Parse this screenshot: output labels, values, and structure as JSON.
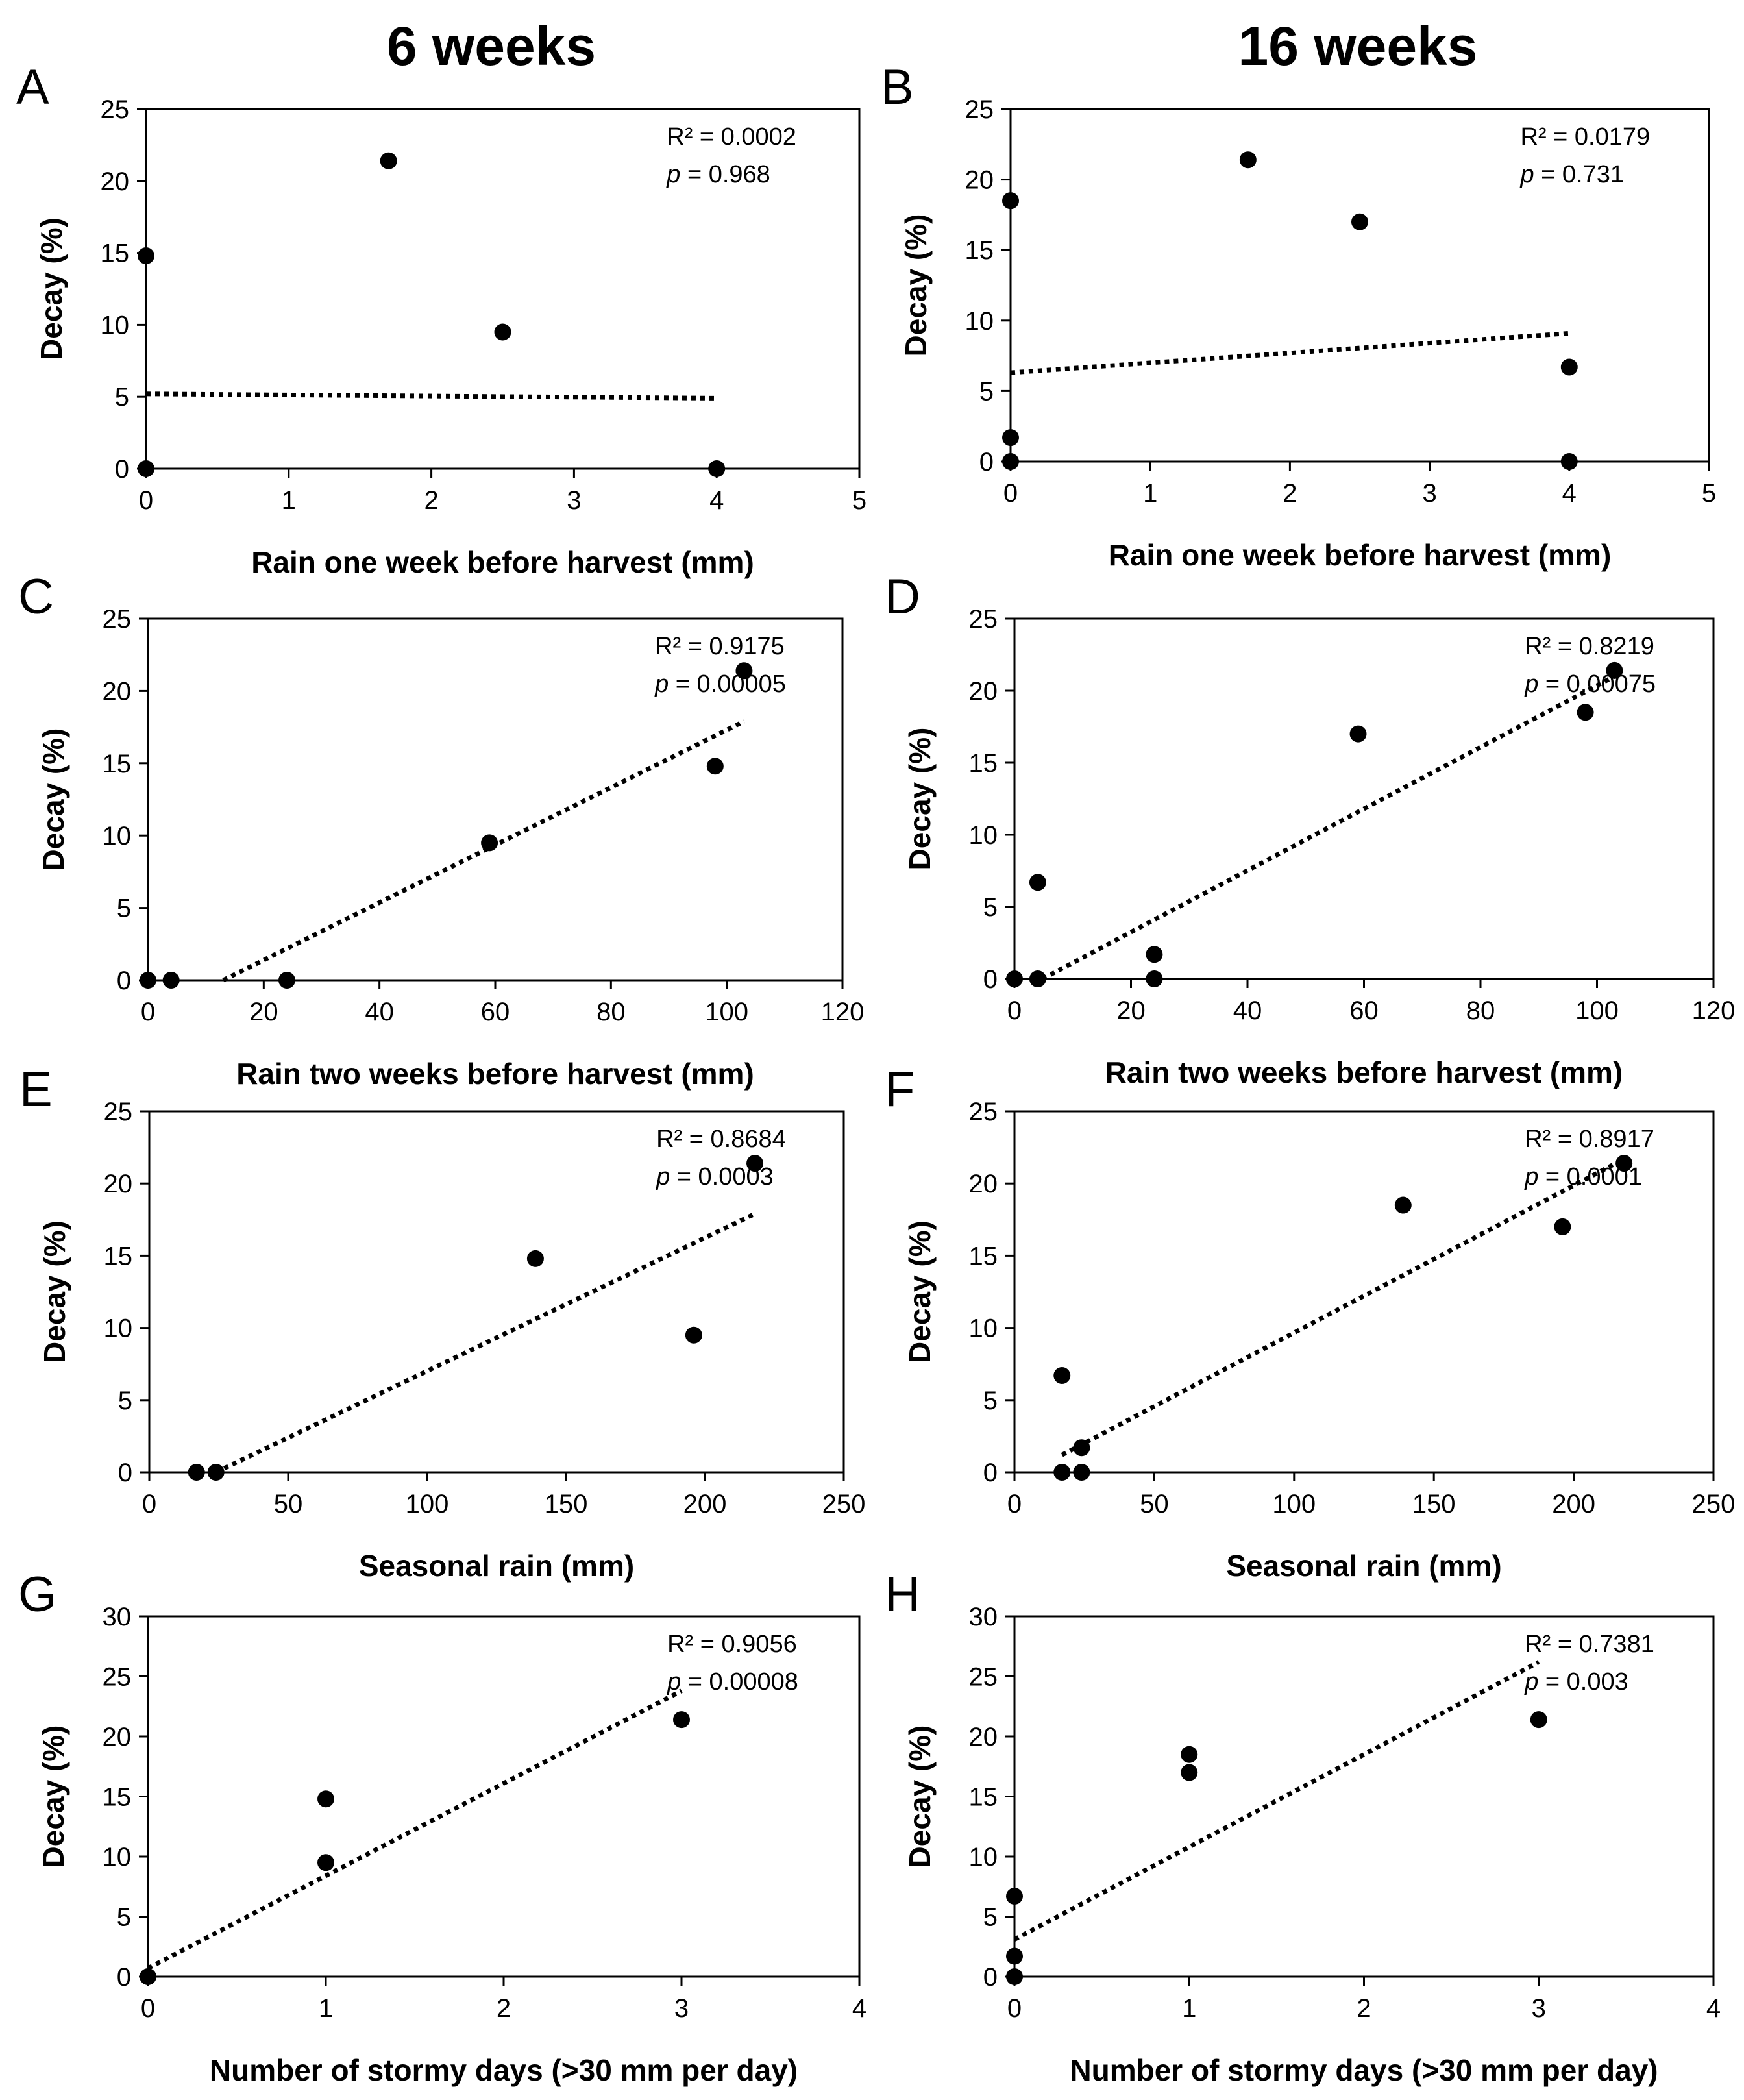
{
  "column_titles": [
    "6 weeks",
    "16 weeks"
  ],
  "chart_data": [
    {
      "type": "scatter",
      "panel": "A",
      "title": "",
      "xlabel": "Rain one week before harvest (mm)",
      "ylabel": "Decay (%)",
      "xlim": [
        0,
        5
      ],
      "ylim": [
        0,
        25
      ],
      "xticks": [
        0,
        1,
        2,
        3,
        4,
        5
      ],
      "yticks": [
        0,
        5,
        10,
        15,
        20,
        25
      ],
      "points": [
        [
          0,
          14.8
        ],
        [
          0,
          0
        ],
        [
          1.7,
          21.4
        ],
        [
          2.5,
          9.5
        ],
        [
          4,
          0
        ]
      ],
      "trendline": {
        "x1": 0,
        "y1": 5.2,
        "x2": 4,
        "y2": 4.9
      },
      "r2": "R² = 0.0002",
      "p_label": "p",
      "p_value": " =  0.968"
    },
    {
      "type": "scatter",
      "panel": "B",
      "title": "",
      "xlabel": "Rain one week before harvest (mm)",
      "ylabel": "Decay (%)",
      "xlim": [
        0,
        5
      ],
      "ylim": [
        0,
        25
      ],
      "xticks": [
        0,
        1,
        2,
        3,
        4,
        5
      ],
      "yticks": [
        0,
        5,
        10,
        15,
        20,
        25
      ],
      "points": [
        [
          0,
          18.5
        ],
        [
          0,
          1.7
        ],
        [
          0,
          0
        ],
        [
          1.7,
          21.4
        ],
        [
          2.5,
          17.0
        ],
        [
          4,
          6.7
        ],
        [
          4,
          0
        ]
      ],
      "trendline": {
        "x1": 0,
        "y1": 6.3,
        "x2": 4,
        "y2": 9.1
      },
      "r2": "R² = 0.0179",
      "p_label": "p",
      "p_value": " = 0.731"
    },
    {
      "type": "scatter",
      "panel": "C",
      "title": "",
      "xlabel": "Rain two weeks before harvest (mm)",
      "ylabel": "Decay (%)",
      "xlim": [
        0,
        120
      ],
      "ylim": [
        0,
        25
      ],
      "xticks": [
        0,
        20,
        40,
        60,
        80,
        100,
        120
      ],
      "yticks": [
        0,
        5,
        10,
        15,
        20,
        25
      ],
      "points": [
        [
          0,
          0
        ],
        [
          4,
          0
        ],
        [
          24,
          0
        ],
        [
          59,
          9.5
        ],
        [
          98,
          14.8
        ],
        [
          103,
          21.4
        ]
      ],
      "trendline": {
        "x1": 13,
        "y1": 0,
        "x2": 103,
        "y2": 17.9
      },
      "r2": "R² = 0.9175",
      "p_label": "p",
      "p_value": " =  0.00005"
    },
    {
      "type": "scatter",
      "panel": "D",
      "title": "",
      "xlabel": "Rain two weeks before harvest (mm)",
      "ylabel": "Decay (%)",
      "xlim": [
        0,
        120
      ],
      "ylim": [
        0,
        25
      ],
      "xticks": [
        0,
        20,
        40,
        60,
        80,
        100,
        120
      ],
      "yticks": [
        0,
        5,
        10,
        15,
        20,
        25
      ],
      "points": [
        [
          0,
          0
        ],
        [
          4,
          6.7
        ],
        [
          4,
          0
        ],
        [
          24,
          1.7
        ],
        [
          24,
          0
        ],
        [
          59,
          17.0
        ],
        [
          98,
          18.5
        ],
        [
          103,
          21.4
        ]
      ],
      "trendline": {
        "x1": 2,
        "y1": -0.6,
        "x2": 103,
        "y2": 21.0
      },
      "r2": "R² = 0.8219",
      "p_label": "p",
      "p_value": " = 0.00075"
    },
    {
      "type": "scatter",
      "panel": "E",
      "title": "",
      "xlabel": "Seasonal rain (mm)",
      "ylabel": "Decay (%)",
      "xlim": [
        0,
        250
      ],
      "ylim": [
        0,
        25
      ],
      "xticks": [
        0,
        50,
        100,
        150,
        200,
        250
      ],
      "yticks": [
        0,
        5,
        10,
        15,
        20,
        25
      ],
      "points": [
        [
          17,
          0
        ],
        [
          24,
          0
        ],
        [
          139,
          14.8
        ],
        [
          196,
          9.5
        ],
        [
          218,
          21.4
        ]
      ],
      "trendline": {
        "x1": 24,
        "y1": 0,
        "x2": 218,
        "y2": 17.9
      },
      "r2": "R² = 0.8684",
      "p_label": "p",
      "p_value": " = 0.0003"
    },
    {
      "type": "scatter",
      "panel": "F",
      "title": "",
      "xlabel": "Seasonal rain (mm)",
      "ylabel": "Decay (%)",
      "xlim": [
        0,
        250
      ],
      "ylim": [
        0,
        25
      ],
      "xticks": [
        0,
        50,
        100,
        150,
        200,
        250
      ],
      "yticks": [
        0,
        5,
        10,
        15,
        20,
        25
      ],
      "points": [
        [
          17,
          6.7
        ],
        [
          17,
          0
        ],
        [
          24,
          1.7
        ],
        [
          24,
          0
        ],
        [
          139,
          18.5
        ],
        [
          196,
          17.0
        ],
        [
          218,
          21.4
        ]
      ],
      "trendline": {
        "x1": 17,
        "y1": 1.2,
        "x2": 218,
        "y2": 21.7
      },
      "r2": "R² = 0.8917",
      "p_label": "p",
      "p_value": " = 0.0001"
    },
    {
      "type": "scatter",
      "panel": "G",
      "title": "",
      "xlabel": "Number of stormy days (>30 mm per day)",
      "ylabel": "Decay (%)",
      "xlim": [
        0,
        4
      ],
      "ylim": [
        0,
        30
      ],
      "xticks": [
        0,
        1,
        2,
        3,
        4
      ],
      "yticks": [
        0,
        5,
        10,
        15,
        20,
        25,
        30
      ],
      "points": [
        [
          0,
          0
        ],
        [
          1,
          14.8
        ],
        [
          1,
          9.5
        ],
        [
          3,
          21.4
        ]
      ],
      "trendline": {
        "x1": 0,
        "y1": 0.7,
        "x2": 3,
        "y2": 23.8
      },
      "r2": "R² = 0.9056",
      "p_label": "p",
      "p_value": " = 0.00008"
    },
    {
      "type": "scatter",
      "panel": "H",
      "title": "",
      "xlabel": "Number of stormy days (>30 mm per day)",
      "ylabel": "Decay (%)",
      "xlim": [
        0,
        4
      ],
      "ylim": [
        0,
        30
      ],
      "xticks": [
        0,
        1,
        2,
        3,
        4
      ],
      "yticks": [
        0,
        5,
        10,
        15,
        20,
        25,
        30
      ],
      "points": [
        [
          0,
          6.7
        ],
        [
          0,
          1.7
        ],
        [
          0,
          0
        ],
        [
          1,
          18.5
        ],
        [
          1,
          17.0
        ],
        [
          3,
          21.4
        ]
      ],
      "trendline": {
        "x1": 0,
        "y1": 3.1,
        "x2": 3,
        "y2": 26.2
      },
      "r2": "R² = 0.7381",
      "p_label": "p",
      "p_value": " = 0.003"
    }
  ]
}
